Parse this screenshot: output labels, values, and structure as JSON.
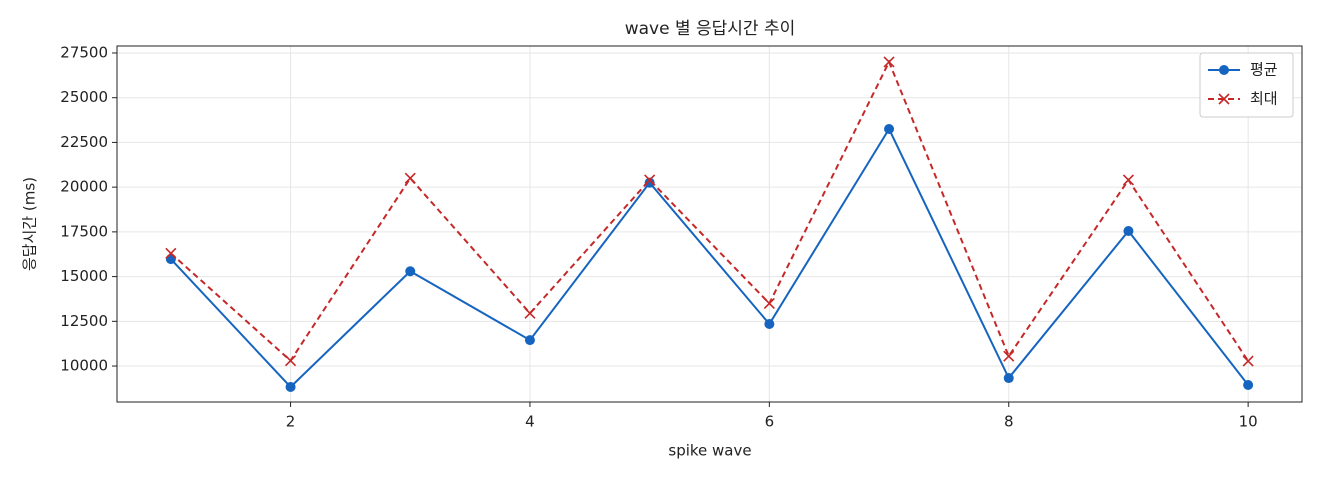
{
  "chart_data": {
    "type": "line",
    "title": "wave 별 응답시간 추이",
    "x_label": "spike wave",
    "y_label": "응답시간 (ms)",
    "x": [
      1,
      2,
      3,
      4,
      5,
      6,
      7,
      8,
      9,
      10
    ],
    "series": [
      {
        "name": "평균",
        "color": "#1565c0",
        "marker": "o",
        "dashed": false,
        "values": [
          15980,
          8830,
          15300,
          11450,
          20250,
          12350,
          23250,
          9330,
          17550,
          8940
        ]
      },
      {
        "name": "최대",
        "color": "#c62828",
        "marker": "x",
        "dashed": true,
        "values": [
          16300,
          10300,
          20500,
          12950,
          20400,
          13500,
          27000,
          10550,
          20400,
          10280
        ]
      }
    ],
    "xlim": [
      0.55,
      10.45
    ],
    "ylim": [
      7990,
      27890
    ],
    "xticks": [
      2,
      4,
      6,
      8,
      10
    ],
    "yticks": [
      10000,
      12500,
      15000,
      17500,
      20000,
      22500,
      25000,
      27500
    ],
    "grid": true,
    "legend": "upper right"
  }
}
